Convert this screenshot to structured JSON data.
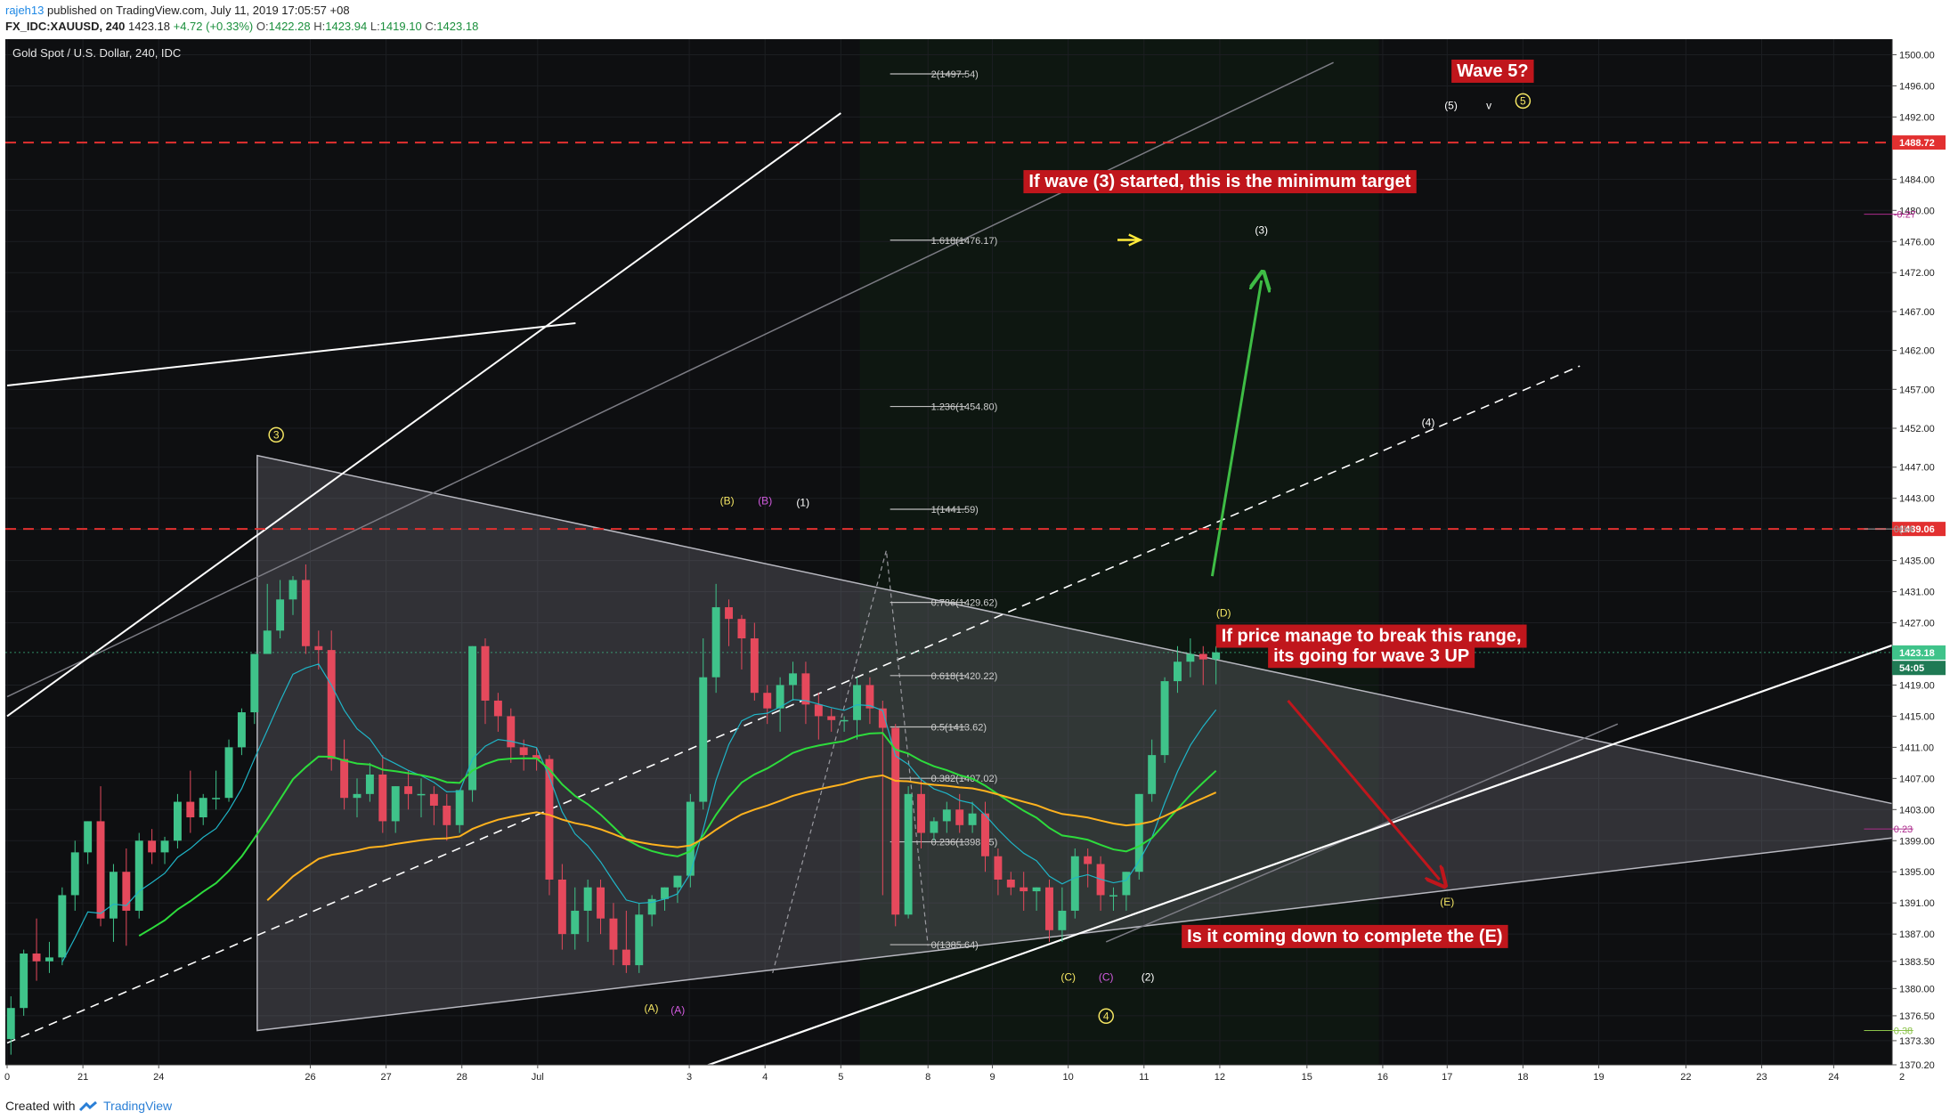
{
  "header": {
    "user": "rajeh13",
    "published": "published on TradingView.com, July 11, 2019 17:05:57 +08",
    "symbol": "FX_IDC:XAUUSD, 240",
    "last": "1423.18",
    "change": "+4.72 (+0.33%)",
    "o_label": "O:",
    "o": "1422.28",
    "h_label": "H:",
    "h": "1423.94",
    "l_label": "L:",
    "l": "1419.10",
    "c_label": "C:",
    "c": "1423.18"
  },
  "footer": {
    "created_with": "Created with",
    "brand": "TradingView"
  },
  "colors": {
    "background": "#0e0f11",
    "bull": "#3fc38a",
    "bear": "#e5495c",
    "ema_fast": "#1fb5c7",
    "ema_mid": "#2ddc3c",
    "ema_slow": "#ffb21e",
    "resistance": "#e23030",
    "label_bg": "#c0161c"
  },
  "chart_data": {
    "type": "candlestick",
    "title": "Gold Spot / U.S. Dollar, 240, IDC",
    "ylim": [
      1370.2,
      1502
    ],
    "y_ticks": [
      "1500.00",
      "1496.00",
      "1492.00",
      "1484.00",
      "1480.00",
      "1476.00",
      "1472.00",
      "1467.00",
      "1462.00",
      "1457.00",
      "1452.00",
      "1447.00",
      "1443.00",
      "1439.00",
      "1435.00",
      "1431.00",
      "1427.00",
      "1419.00",
      "1415.00",
      "1411.00",
      "1407.00",
      "1403.00",
      "1399.00",
      "1395.00",
      "1391.00",
      "1387.00",
      "1383.50",
      "1380.00",
      "1376.50",
      "1373.30",
      "1370.20"
    ],
    "x_ticks": [
      {
        "label": "0",
        "x": 0
      },
      {
        "label": "21",
        "x": 2
      },
      {
        "label": "24",
        "x": 4
      },
      {
        "label": "26",
        "x": 8
      },
      {
        "label": "27",
        "x": 10
      },
      {
        "label": "28",
        "x": 12
      },
      {
        "label": "Jul",
        "x": 14
      },
      {
        "label": "3",
        "x": 18
      },
      {
        "label": "4",
        "x": 20
      },
      {
        "label": "5",
        "x": 22
      },
      {
        "label": "8",
        "x": 24.3
      },
      {
        "label": "9",
        "x": 26
      },
      {
        "label": "10",
        "x": 28
      },
      {
        "label": "11",
        "x": 30
      },
      {
        "label": "12",
        "x": 32
      },
      {
        "label": "15",
        "x": 34.3
      },
      {
        "label": "16",
        "x": 36.3
      },
      {
        "label": "17",
        "x": 38
      },
      {
        "label": "18",
        "x": 40
      },
      {
        "label": "19",
        "x": 42
      },
      {
        "label": "22",
        "x": 44.3
      },
      {
        "label": "23",
        "x": 46.3
      },
      {
        "label": "24",
        "x": 48.2
      },
      {
        "label": "2",
        "x": 50
      }
    ],
    "candles": [
      [
        1373.5,
        1379,
        1377.5,
        1371.5
      ],
      [
        1377.5,
        1385,
        1384.5,
        1376.5
      ],
      [
        1384.5,
        1389,
        1383.5,
        1381
      ],
      [
        1383.5,
        1386,
        1384,
        1382
      ],
      [
        1384,
        1393,
        1392,
        1383
      ],
      [
        1392,
        1399,
        1397.5,
        1390
      ],
      [
        1397.5,
        1401,
        1401.5,
        1396
      ],
      [
        1401.5,
        1406,
        1389,
        1388
      ],
      [
        1389,
        1396,
        1395,
        1386
      ],
      [
        1395,
        1398,
        1390,
        1385.5
      ],
      [
        1390,
        1400,
        1399,
        1389
      ],
      [
        1399,
        1400.5,
        1397.5,
        1396
      ],
      [
        1397.5,
        1399.5,
        1399,
        1396
      ],
      [
        1399,
        1405,
        1404,
        1398
      ],
      [
        1404,
        1408,
        1402,
        1400
      ],
      [
        1402,
        1405,
        1404.5,
        1401
      ],
      [
        1404.5,
        1408,
        1404.5,
        1403
      ],
      [
        1404.5,
        1412,
        1411,
        1404
      ],
      [
        1411,
        1416,
        1415.5,
        1410
      ],
      [
        1415.5,
        1423,
        1423,
        1414
      ],
      [
        1423,
        1432,
        1426,
        1424
      ],
      [
        1426,
        1432.5,
        1430,
        1425
      ],
      [
        1430,
        1433,
        1432.5,
        1428
      ],
      [
        1432.5,
        1434.5,
        1424,
        1423
      ],
      [
        1424,
        1426,
        1423.5,
        1421
      ],
      [
        1423.5,
        1426,
        1409.5,
        1408
      ],
      [
        1409.5,
        1412,
        1404.5,
        1403
      ],
      [
        1404.5,
        1407,
        1405,
        1402
      ],
      [
        1405,
        1409,
        1407.5,
        1404
      ],
      [
        1407.5,
        1410,
        1401.5,
        1400
      ],
      [
        1401.5,
        1405,
        1406,
        1400
      ],
      [
        1406,
        1408,
        1405,
        1403
      ],
      [
        1405,
        1407,
        1405,
        1402
      ],
      [
        1405,
        1406,
        1403.5,
        1401
      ],
      [
        1403.5,
        1405,
        1401,
        1399
      ],
      [
        1401,
        1403,
        1405.5,
        1400
      ],
      [
        1405.5,
        1424,
        1424,
        1404
      ],
      [
        1424,
        1425,
        1417,
        1414
      ],
      [
        1417,
        1418,
        1415,
        1413
      ],
      [
        1415,
        1416,
        1411,
        1409
      ],
      [
        1411,
        1412,
        1410,
        1408
      ],
      [
        1410,
        1411,
        1409.5,
        1408
      ],
      [
        1409.5,
        1410,
        1394,
        1392
      ],
      [
        1394,
        1396,
        1387,
        1385
      ],
      [
        1387,
        1393,
        1390,
        1385
      ],
      [
        1390,
        1394,
        1393,
        1386
      ],
      [
        1393,
        1394,
        1389,
        1387
      ],
      [
        1389,
        1391,
        1385,
        1383
      ],
      [
        1385,
        1390,
        1383,
        1382
      ],
      [
        1383,
        1391,
        1389.5,
        1382
      ],
      [
        1389.5,
        1392,
        1391.5,
        1388
      ],
      [
        1391.5,
        1393,
        1393,
        1390
      ],
      [
        1393,
        1394,
        1394.5,
        1391
      ],
      [
        1394.5,
        1405,
        1404,
        1393
      ],
      [
        1404,
        1425,
        1420,
        1403
      ],
      [
        1420,
        1432,
        1429,
        1418
      ],
      [
        1429,
        1430,
        1427.5,
        1424
      ],
      [
        1427.5,
        1428,
        1425,
        1421
      ],
      [
        1425,
        1427,
        1418,
        1417
      ],
      [
        1418,
        1419,
        1416,
        1414
      ],
      [
        1416,
        1420,
        1419,
        1413
      ],
      [
        1419,
        1422,
        1420.5,
        1417
      ],
      [
        1420.5,
        1422,
        1416.5,
        1414
      ],
      [
        1416.5,
        1418,
        1415,
        1412
      ],
      [
        1415,
        1416,
        1414.5,
        1413
      ],
      [
        1414.5,
        1415,
        1414.5,
        1413
      ],
      [
        1414.5,
        1420,
        1419,
        1412
      ],
      [
        1419,
        1420,
        1416,
        1414
      ],
      [
        1416,
        1417,
        1413.5,
        1392
      ],
      [
        1413.5,
        1414,
        1389.5,
        1388
      ],
      [
        1389.5,
        1406,
        1405,
        1389
      ],
      [
        1405,
        1407,
        1400,
        1398
      ],
      [
        1400,
        1402,
        1401.5,
        1399
      ],
      [
        1401.5,
        1404,
        1403,
        1400
      ],
      [
        1403,
        1405,
        1401,
        1400
      ],
      [
        1401,
        1404,
        1402.5,
        1400
      ],
      [
        1402.5,
        1404,
        1397,
        1395
      ],
      [
        1397,
        1398,
        1394,
        1392
      ],
      [
        1394,
        1395,
        1393,
        1392
      ],
      [
        1393,
        1395,
        1392.5,
        1390
      ],
      [
        1392.5,
        1393,
        1393,
        1390
      ],
      [
        1393,
        1394,
        1387.5,
        1386
      ],
      [
        1387.5,
        1393,
        1390,
        1386
      ],
      [
        1390,
        1398,
        1397,
        1389
      ],
      [
        1397,
        1398,
        1396,
        1393
      ],
      [
        1396,
        1397,
        1392,
        1390
      ],
      [
        1392,
        1393,
        1392,
        1390
      ],
      [
        1392,
        1395,
        1395,
        1390
      ],
      [
        1395,
        1405,
        1405,
        1394
      ],
      [
        1405,
        1412,
        1410,
        1404
      ],
      [
        1410,
        1420,
        1419.5,
        1409
      ],
      [
        1419.5,
        1424,
        1422,
        1418
      ],
      [
        1422,
        1425,
        1423,
        1420
      ],
      [
        1423,
        1424,
        1422.3,
        1419
      ],
      [
        1422.3,
        1424,
        1423.2,
        1419.1
      ]
    ],
    "candles_visual_adjust": "see script",
    "series": [
      {
        "name": "EMA fast"
      },
      {
        "name": "EMA mid"
      },
      {
        "name": "EMA slow"
      }
    ],
    "fib_levels": [
      {
        "label": "2(1497.54)",
        "price": 1497.54
      },
      {
        "label": "1.618(1476.17)",
        "price": 1476.17
      },
      {
        "label": "1.236(1454.80)",
        "price": 1454.8
      },
      {
        "label": "1(1441.59)",
        "price": 1441.59
      },
      {
        "label": "0.786(1429.62)",
        "price": 1429.62
      },
      {
        "label": "0.618(1420.22)",
        "price": 1420.22
      },
      {
        "label": "0.5(1413.62)",
        "price": 1413.62
      },
      {
        "label": "0.382(1407.02)",
        "price": 1407.02
      },
      {
        "label": "0.236(1398.85)",
        "price": 1398.85
      },
      {
        "label": "0(1385.64)",
        "price": 1385.64
      }
    ],
    "price_tags": [
      {
        "price": 1488.72,
        "label": "1488.72",
        "type": "resistance"
      },
      {
        "price": 1439.06,
        "label": "1439.06",
        "type": "resistance"
      },
      {
        "price": 1423.18,
        "label": "1423.18",
        "type": "last"
      },
      {
        "price": 1421.2,
        "label": "54:05",
        "type": "countdown"
      }
    ],
    "right_fib": [
      {
        "label": "-0.27",
        "price": 1479.5
      },
      {
        "label": "0(14",
        "price": 1439.06
      },
      {
        "label": "0.23",
        "price": 1400.5
      },
      {
        "label": "0.38",
        "price": 1374.6
      }
    ],
    "wave_labels": [
      {
        "text": "3",
        "x": 7.1,
        "y": 1450.7,
        "color": "#f5e663",
        "circle": true
      },
      {
        "text": "(B)",
        "x": 19.0,
        "y": 1442.2,
        "color": "#f5e663"
      },
      {
        "text": "(B)",
        "x": 20.0,
        "y": 1442.2,
        "color": "#d25be0"
      },
      {
        "text": "(1)",
        "x": 21.0,
        "y": 1442.0,
        "color": "#ffffff"
      },
      {
        "text": "(A)",
        "x": 17.0,
        "y": 1377.0,
        "color": "#f5e663"
      },
      {
        "text": "(A)",
        "x": 17.7,
        "y": 1376.8,
        "color": "#d25be0"
      },
      {
        "text": "(C)",
        "x": 28.0,
        "y": 1381.0,
        "color": "#f5e663"
      },
      {
        "text": "(C)",
        "x": 29.0,
        "y": 1381.0,
        "color": "#d25be0"
      },
      {
        "text": "(2)",
        "x": 30.1,
        "y": 1381.0,
        "color": "#ffffff"
      },
      {
        "text": "4",
        "x": 29.0,
        "y": 1376.0,
        "color": "#f5e663",
        "circle": true
      },
      {
        "text": "(D)",
        "x": 32.1,
        "y": 1427.8,
        "color": "#f5e663"
      },
      {
        "text": "(3)",
        "x": 33.1,
        "y": 1477.0,
        "color": "#ffffff"
      },
      {
        "text": "(4)",
        "x": 37.5,
        "y": 1452.3,
        "color": "#ffffff"
      },
      {
        "text": "(5)",
        "x": 38.1,
        "y": 1493.0,
        "color": "#ffffff"
      },
      {
        "text": "v",
        "x": 39.1,
        "y": 1493.0,
        "color": "#ffffff"
      },
      {
        "text": "5",
        "x": 40.0,
        "y": 1493.6,
        "color": "#f5e663",
        "circle": true
      },
      {
        "text": "(E)",
        "x": 38.0,
        "y": 1390.7,
        "color": "#f5e663"
      }
    ],
    "annotations": [
      {
        "text": "Wave 5?",
        "x": 39.2,
        "y": 1497.2
      },
      {
        "text": "If wave (3) started, this is the minimum target",
        "x": 32.0,
        "y": 1483.0
      },
      {
        "text": "If price manage to break this range,",
        "x": 36.0,
        "y": 1424.6
      },
      {
        "text": "its going for wave 3 UP",
        "x": 36.0,
        "y": 1422.0
      },
      {
        "text": "Is it coming down to complete the (E)",
        "x": 35.3,
        "y": 1386.0
      }
    ]
  }
}
